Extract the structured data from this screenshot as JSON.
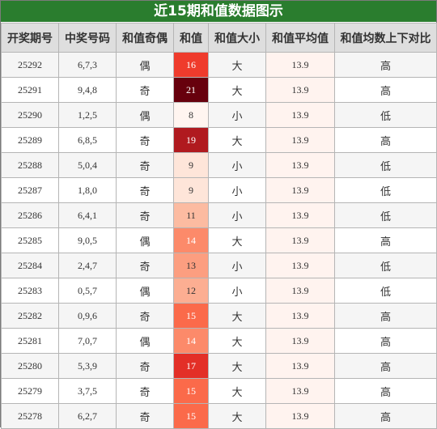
{
  "title": "近15期和值数据图示",
  "headers": [
    "开奖期号",
    "中奖号码",
    "和值奇偶",
    "和值",
    "和值大小",
    "和值平均值",
    "和值均数上下对比"
  ],
  "rows": [
    {
      "issue": "25292",
      "numbers": "6,7,3",
      "parity": "偶",
      "sum": "16",
      "size": "大",
      "avg": "13.9",
      "compare": "高",
      "sum_color": "#ef3b2c"
    },
    {
      "issue": "25291",
      "numbers": "9,4,8",
      "parity": "奇",
      "sum": "21",
      "size": "大",
      "avg": "13.9",
      "compare": "高",
      "sum_color": "#67000d"
    },
    {
      "issue": "25290",
      "numbers": "1,2,5",
      "parity": "偶",
      "sum": "8",
      "size": "小",
      "avg": "13.9",
      "compare": "低",
      "sum_color": "#fff5f0"
    },
    {
      "issue": "25289",
      "numbers": "6,8,5",
      "parity": "奇",
      "sum": "19",
      "size": "大",
      "avg": "13.9",
      "compare": "高",
      "sum_color": "#b01a1f"
    },
    {
      "issue": "25288",
      "numbers": "5,0,4",
      "parity": "奇",
      "sum": "9",
      "size": "小",
      "avg": "13.9",
      "compare": "低",
      "sum_color": "#fee5d9"
    },
    {
      "issue": "25287",
      "numbers": "1,8,0",
      "parity": "奇",
      "sum": "9",
      "size": "小",
      "avg": "13.9",
      "compare": "低",
      "sum_color": "#fee5d9"
    },
    {
      "issue": "25286",
      "numbers": "6,4,1",
      "parity": "奇",
      "sum": "11",
      "size": "小",
      "avg": "13.9",
      "compare": "低",
      "sum_color": "#fcbba1"
    },
    {
      "issue": "25285",
      "numbers": "9,0,5",
      "parity": "偶",
      "sum": "14",
      "size": "大",
      "avg": "13.9",
      "compare": "高",
      "sum_color": "#fc8a6a"
    },
    {
      "issue": "25284",
      "numbers": "2,4,7",
      "parity": "奇",
      "sum": "13",
      "size": "小",
      "avg": "13.9",
      "compare": "低",
      "sum_color": "#fc9e80"
    },
    {
      "issue": "25283",
      "numbers": "0,5,7",
      "parity": "偶",
      "sum": "12",
      "size": "小",
      "avg": "13.9",
      "compare": "低",
      "sum_color": "#fcae92"
    },
    {
      "issue": "25282",
      "numbers": "0,9,6",
      "parity": "奇",
      "sum": "15",
      "size": "大",
      "avg": "13.9",
      "compare": "高",
      "sum_color": "#fb6a4a"
    },
    {
      "issue": "25281",
      "numbers": "7,0,7",
      "parity": "偶",
      "sum": "14",
      "size": "大",
      "avg": "13.9",
      "compare": "高",
      "sum_color": "#fc8a6a"
    },
    {
      "issue": "25280",
      "numbers": "5,3,9",
      "parity": "奇",
      "sum": "17",
      "size": "大",
      "avg": "13.9",
      "compare": "高",
      "sum_color": "#e32f27"
    },
    {
      "issue": "25279",
      "numbers": "3,7,5",
      "parity": "奇",
      "sum": "15",
      "size": "大",
      "avg": "13.9",
      "compare": "高",
      "sum_color": "#fb6a4a"
    },
    {
      "issue": "25278",
      "numbers": "6,2,7",
      "parity": "奇",
      "sum": "15",
      "size": "大",
      "avg": "13.9",
      "compare": "高",
      "sum_color": "#fb6a4a"
    }
  ]
}
